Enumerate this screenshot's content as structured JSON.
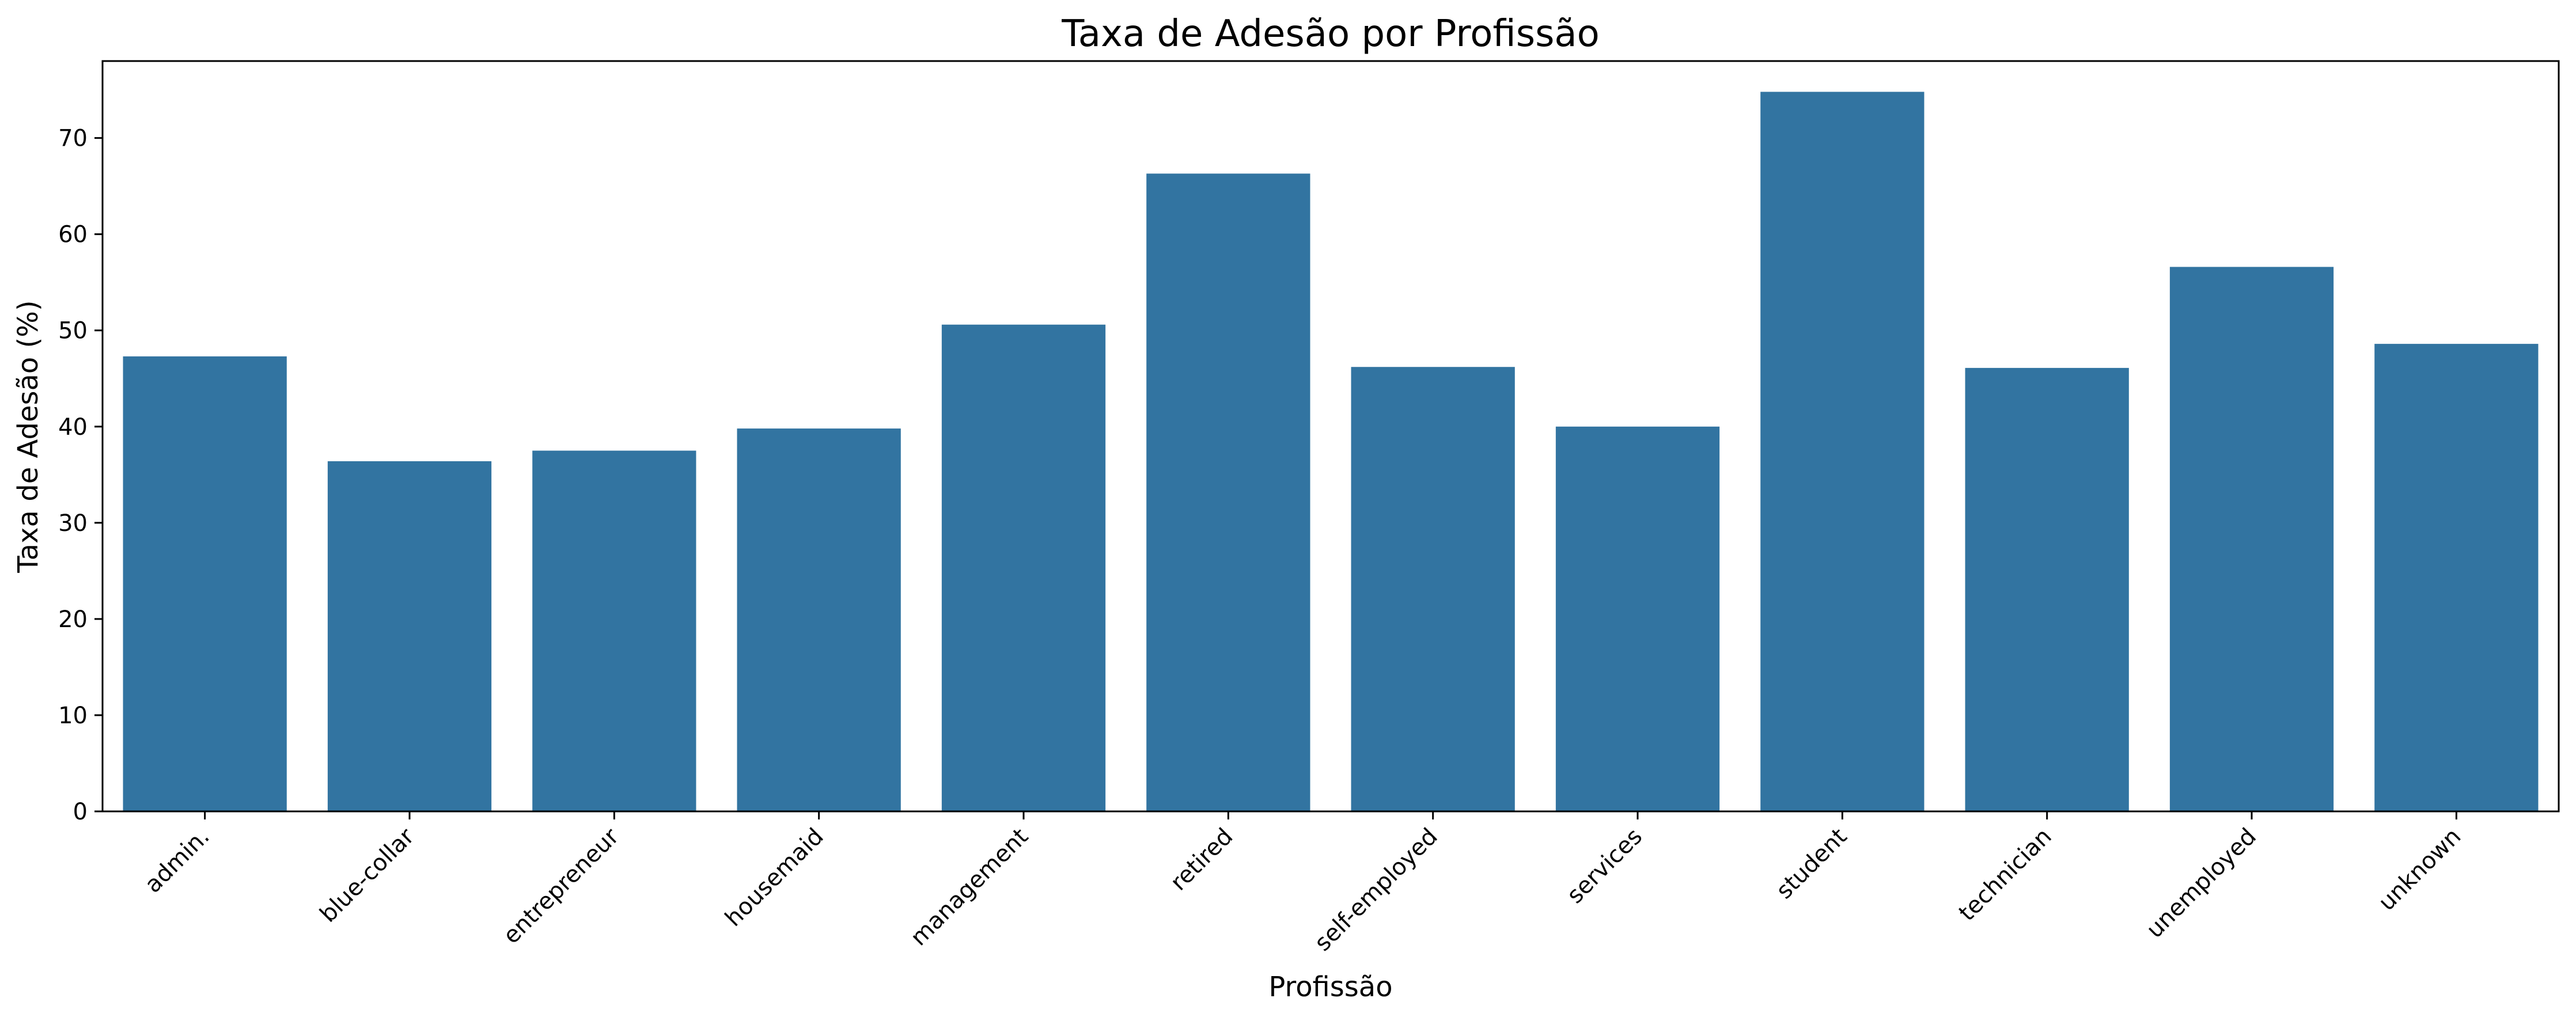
{
  "chart_data": {
    "type": "bar",
    "title": "Taxa de Adesão por Profissão",
    "xlabel": "Profissão",
    "ylabel": "Taxa de Adesão (%)",
    "categories": [
      "admin.",
      "blue-collar",
      "entrepreneur",
      "housemaid",
      "management",
      "retired",
      "self-employed",
      "services",
      "student",
      "technician",
      "unemployed",
      "unknown"
    ],
    "values": [
      47.3,
      36.4,
      37.5,
      39.8,
      50.6,
      66.3,
      46.2,
      40.0,
      74.8,
      46.1,
      56.6,
      48.6
    ],
    "ylim": [
      0,
      78
    ],
    "yticks": [
      0,
      10,
      20,
      30,
      40,
      50,
      60,
      70
    ],
    "bar_color": "#3274a1",
    "grid": false,
    "legend": "none"
  }
}
